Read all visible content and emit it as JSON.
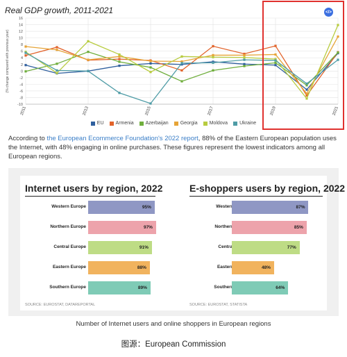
{
  "colors": {
    "EU": "#2f5f9e",
    "Armenia": "#e2632a",
    "Azerbaijan": "#6fae3c",
    "Georgia": "#e6a437",
    "Moldova": "#b8cc3f",
    "Ukraine": "#4f9ca6",
    "highlight": "#e0312e",
    "western": "#8f97c4",
    "northern": "#eda3ab",
    "central": "#bedc85",
    "eastern": "#f1b35e",
    "southern": "#7fcbb6"
  },
  "gdp_chart": {
    "title": "Real GDP growth, 2011-2021",
    "badge_icon": "code-icon",
    "badge_text": "</>"
  },
  "paragraph": {
    "before": "According to ",
    "link": "the European Ecommerce Foundation's 2022 report",
    "after": ", 88% of the Eastern European population uses the Internet, with 48% engaging in online purchases. These figures represent the lowest indicators among all European regions."
  },
  "internet_panel": {
    "title": "Internet users by region, 2022",
    "source": "SOURCE: EUROSTAT, DATAREPORTAL"
  },
  "eshop_panel": {
    "title": "E-shoppers users by region, 2022",
    "source": "SOURCE: EUROSTAT, STATISTA"
  },
  "figure_caption": "Number of Internet users and online shoppers in European regions",
  "attribution": "图源：European Commission",
  "chart_data": [
    {
      "type": "line",
      "title": "Real GDP growth, 2011-2021",
      "ylabel": "(% change compared with previous year)",
      "xlabel": "",
      "x": [
        2011,
        2012,
        2013,
        2014,
        2015,
        2016,
        2017,
        2018,
        2019,
        2020,
        2021
      ],
      "x_ticks": [
        "2011",
        "2013",
        "2015",
        "2017",
        "2019",
        "2021"
      ],
      "y_ticks": [
        "16",
        "14",
        "12",
        "10",
        "8",
        "6",
        "4",
        "2",
        "0",
        "-2",
        "-4",
        "-6",
        "-8",
        "-10"
      ],
      "ylim": [
        -10,
        16
      ],
      "grid": true,
      "legend_position": "bottom",
      "series": [
        {
          "name": "EU",
          "values": [
            1.8,
            -0.7,
            0.0,
            1.6,
            2.3,
            2.0,
            2.8,
            2.1,
            1.8,
            -5.6,
            5.4
          ]
        },
        {
          "name": "Armenia",
          "values": [
            4.7,
            7.2,
            3.3,
            3.6,
            3.2,
            0.2,
            7.5,
            5.2,
            7.6,
            -7.4,
            5.7
          ]
        },
        {
          "name": "Azerbaijan",
          "values": [
            -0.1,
            2.2,
            5.8,
            2.8,
            1.1,
            -3.1,
            0.2,
            1.5,
            2.5,
            -4.3,
            5.6
          ]
        },
        {
          "name": "Georgia",
          "values": [
            7.4,
            6.4,
            3.4,
            4.4,
            3.0,
            2.9,
            4.8,
            4.8,
            5.0,
            -6.8,
            10.4
          ]
        },
        {
          "name": "Moldova",
          "values": [
            5.8,
            -0.6,
            9.0,
            5.0,
            -0.3,
            4.4,
            4.2,
            4.1,
            3.6,
            -8.3,
            13.9
          ]
        },
        {
          "name": "Ukraine",
          "values": [
            5.5,
            0.2,
            0.0,
            -6.6,
            -9.8,
            2.4,
            2.5,
            3.4,
            3.2,
            -3.8,
            3.4
          ]
        }
      ]
    },
    {
      "type": "bar",
      "orientation": "horizontal",
      "title": "Internet users by region, 2022",
      "categories": [
        "Western Europe",
        "Northern Europe",
        "Central Europe",
        "Eastern Europe",
        "Southern Europe"
      ],
      "values": [
        95,
        97,
        91,
        88,
        89
      ],
      "value_labels": [
        "95%",
        "97%",
        "91%",
        "88%",
        "89%"
      ],
      "unit": "%"
    },
    {
      "type": "bar",
      "orientation": "horizontal",
      "title": "E-shoppers users by region, 2022",
      "categories": [
        "Western Europe",
        "Northern Europe",
        "Central Europe",
        "Eastern Europe",
        "Southern Europe"
      ],
      "values": [
        87,
        85,
        77,
        48,
        64
      ],
      "value_labels": [
        "87%",
        "85%",
        "77%",
        "48%",
        "64%"
      ],
      "unit": "%"
    }
  ]
}
